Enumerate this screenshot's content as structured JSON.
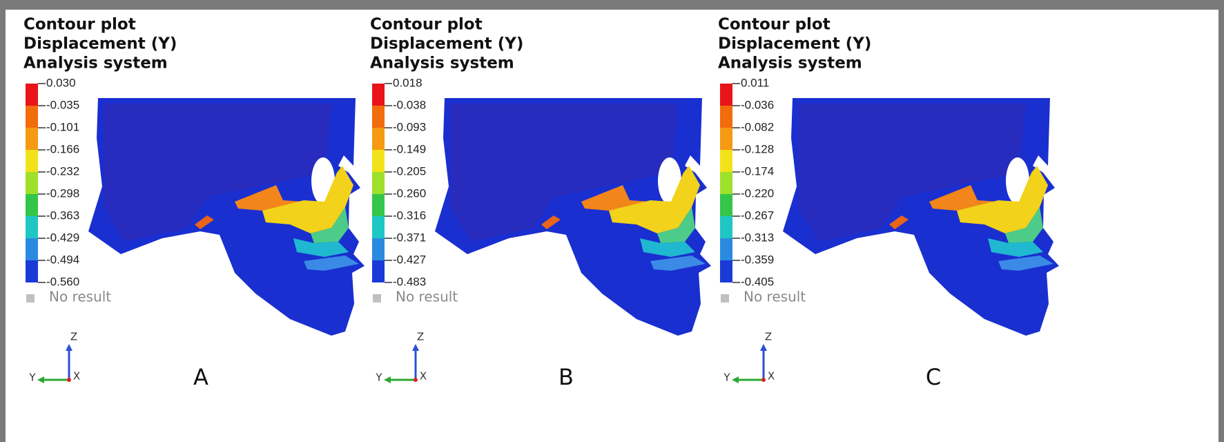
{
  "panels": [
    {
      "title_lines": [
        "Contour plot",
        "Displacement (Y)",
        "Analysis system"
      ],
      "legend": {
        "ticks": [
          "0.030",
          "-0.035",
          "-0.101",
          "-0.166",
          "-0.232",
          "-0.298",
          "-0.363",
          "-0.429",
          "-0.494",
          "-0.560"
        ],
        "no_result": "No result"
      },
      "axes": {
        "z": "Z",
        "y": "Y",
        "x": "X"
      },
      "label": "A"
    },
    {
      "title_lines": [
        "Contour plot",
        "Displacement (Y)",
        "Analysis system"
      ],
      "legend": {
        "ticks": [
          "0.018",
          "-0.038",
          "-0.093",
          "-0.149",
          "-0.205",
          "-0.260",
          "-0.316",
          "-0.371",
          "-0.427",
          "-0.483"
        ],
        "no_result": "No result"
      },
      "axes": {
        "z": "Z",
        "y": "Y",
        "x": "X"
      },
      "label": "B"
    },
    {
      "title_lines": [
        "Contour plot",
        "Displacement (Y)",
        "Analysis system"
      ],
      "legend": {
        "ticks": [
          "0.011",
          "-0.036",
          "-0.082",
          "-0.128",
          "-0.174",
          "-0.220",
          "-0.267",
          "-0.313",
          "-0.359",
          "-0.405"
        ],
        "no_result": "No result"
      },
      "axes": {
        "z": "Z",
        "y": "Y",
        "x": "X"
      },
      "label": "C"
    }
  ]
}
